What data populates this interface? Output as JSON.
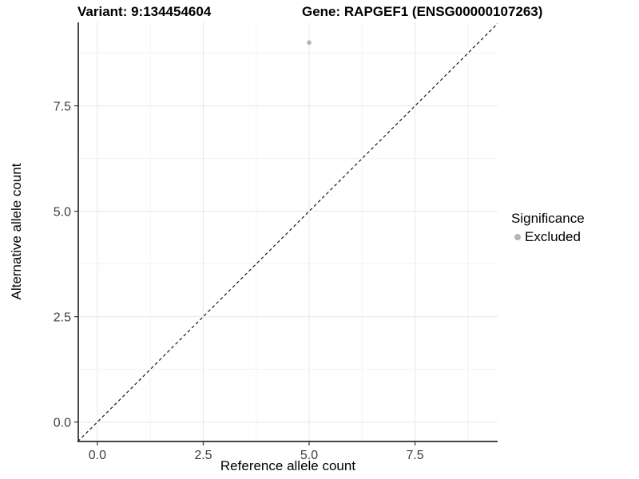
{
  "chart_data": {
    "type": "scatter",
    "titles": {
      "left": "Variant: 9:134454604",
      "right": "Gene: RAPGEF1 (ENSG00000107263)"
    },
    "xlabel": "Reference allele count",
    "ylabel": "Alternative allele count",
    "xlim": [
      -0.45,
      9.45
    ],
    "ylim": [
      -0.46,
      9.48
    ],
    "x_major_ticks": [
      0,
      2.5,
      5,
      7.5
    ],
    "x_tick_labels": [
      "0.0",
      "2.5",
      "5.0",
      "7.5"
    ],
    "y_major_ticks": [
      0,
      2.5,
      5,
      7.5
    ],
    "y_tick_labels": [
      "0.0",
      "2.5",
      "5.0",
      "7.5"
    ],
    "x_minor_ticks": [
      1.25,
      3.75,
      6.25,
      8.75
    ],
    "y_minor_ticks": [
      1.25,
      3.75,
      6.25,
      8.75
    ],
    "grid": {
      "major": true,
      "minor": true
    },
    "identity_line": {
      "shown": true,
      "style": "dashed",
      "equation": "y = x"
    },
    "series": [
      {
        "name": "Excluded",
        "color": "#b4b4b4",
        "points": [
          {
            "x": 5,
            "y": 9
          }
        ]
      }
    ],
    "legend": {
      "title": "Significance",
      "position": "right",
      "entries": [
        {
          "label": "Excluded",
          "color": "#b4b4b4"
        }
      ]
    }
  },
  "colors": {
    "background": "#ffffff",
    "grid_major": "#e7e7e7",
    "grid_minor": "#f3f3f3",
    "axis_line": "#2a2a2a",
    "tick_mark": "#333333",
    "tick_label": "#404040",
    "point": "#b4b4b4",
    "text": "#000000"
  }
}
